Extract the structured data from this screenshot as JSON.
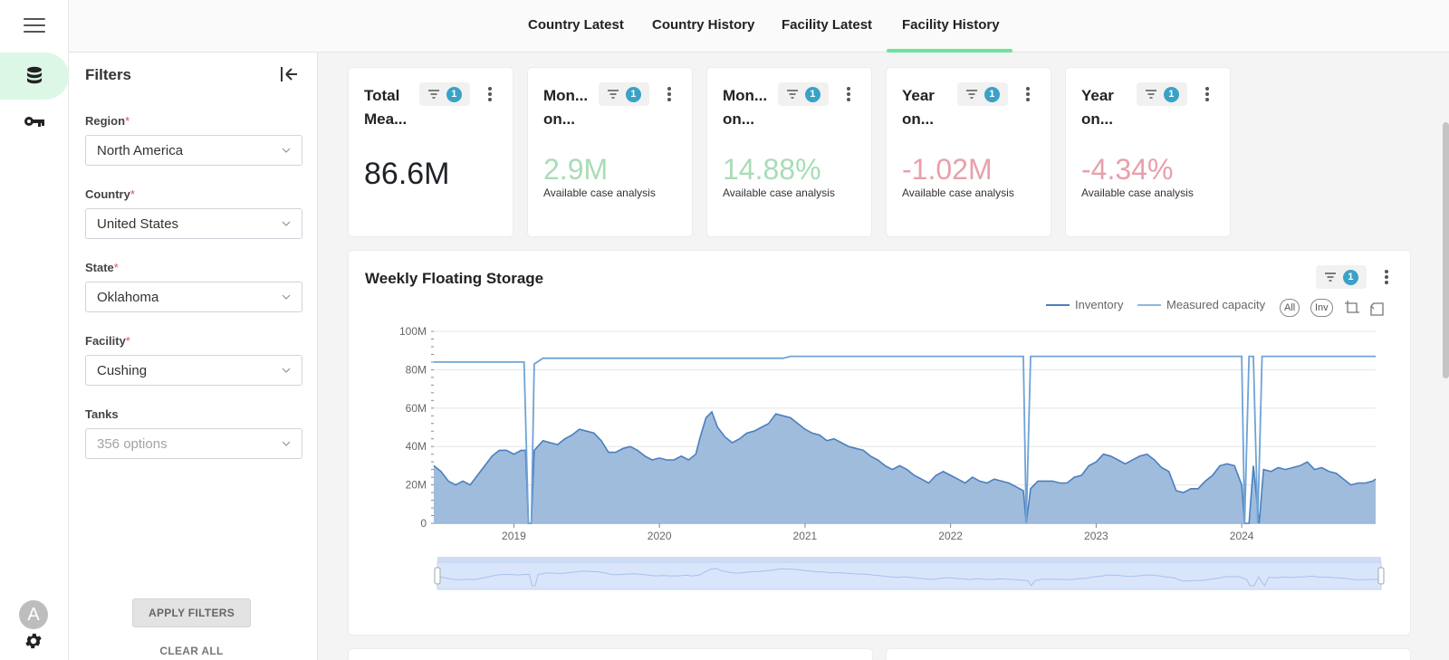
{
  "tabs": [
    "Country Latest",
    "Country History",
    "Facility Latest",
    "Facility History"
  ],
  "active_tab": "Facility History",
  "rail": {
    "avatar_letter": "A"
  },
  "filters": {
    "title": "Filters",
    "region": {
      "label": "Region",
      "value": "North America"
    },
    "country": {
      "label": "Country",
      "value": "United States"
    },
    "state": {
      "label": "State",
      "value": "Oklahoma"
    },
    "facility": {
      "label": "Facility",
      "value": "Cushing"
    },
    "tanks": {
      "label": "Tanks",
      "placeholder": "356 options"
    },
    "required_mark": "*",
    "apply_label": "APPLY FILTERS",
    "clear_label": "CLEAR ALL"
  },
  "kpis": [
    {
      "title": "Total Mea...",
      "filter_count": "1",
      "value": "86.6M",
      "sub": "",
      "tone": "neutral"
    },
    {
      "title": "Mon... on...",
      "filter_count": "1",
      "value": "2.9M",
      "sub": "Available case analysis",
      "tone": "pos"
    },
    {
      "title": "Mon... on...",
      "filter_count": "1",
      "value": "14.88%",
      "sub": "Available case analysis",
      "tone": "pos"
    },
    {
      "title": "Year on...",
      "filter_count": "1",
      "value": "-1.02M",
      "sub": "Available case analysis",
      "tone": "neg"
    },
    {
      "title": "Year on...",
      "filter_count": "1",
      "value": "-4.34%",
      "sub": "Available case analysis",
      "tone": "neg"
    }
  ],
  "chart_card": {
    "title": "Weekly Floating Storage",
    "filter_count": "1",
    "legend": [
      "Inventory",
      "Measured capacity"
    ],
    "buttons": [
      "All",
      "Inv"
    ]
  },
  "colors": {
    "inventory": "#4a7fbf",
    "inventory_fill": "#9bb8da",
    "capacity": "#6fa3d6",
    "accent": "#6ee39a",
    "badge": "#3aa1c7"
  },
  "chart_data": {
    "type": "area",
    "title": "Weekly Floating Storage",
    "xlabel": "",
    "ylabel": "",
    "x_ticks": [
      "2019",
      "2020",
      "2021",
      "2022",
      "2023",
      "2024"
    ],
    "y_ticks": [
      "0",
      "20M",
      "40M",
      "60M",
      "80M",
      "100M"
    ],
    "ylim": [
      0,
      100
    ],
    "xlim": [
      2018.45,
      2024.92
    ],
    "grid": true,
    "legend_position": "top-right",
    "series": [
      {
        "name": "Inventory",
        "kind": "area",
        "points": [
          [
            2018.45,
            30
          ],
          [
            2018.5,
            27
          ],
          [
            2018.55,
            22
          ],
          [
            2018.6,
            20
          ],
          [
            2018.65,
            22
          ],
          [
            2018.7,
            20
          ],
          [
            2018.75,
            25
          ],
          [
            2018.8,
            30
          ],
          [
            2018.85,
            35
          ],
          [
            2018.9,
            38
          ],
          [
            2018.95,
            38
          ],
          [
            2019.0,
            36
          ],
          [
            2019.05,
            38
          ],
          [
            2019.08,
            38
          ],
          [
            2019.1,
            0
          ],
          [
            2019.12,
            0
          ],
          [
            2019.14,
            38
          ],
          [
            2019.2,
            43
          ],
          [
            2019.25,
            42
          ],
          [
            2019.3,
            41
          ],
          [
            2019.35,
            44
          ],
          [
            2019.4,
            46
          ],
          [
            2019.45,
            49
          ],
          [
            2019.5,
            48
          ],
          [
            2019.55,
            47
          ],
          [
            2019.6,
            43
          ],
          [
            2019.65,
            37
          ],
          [
            2019.7,
            37
          ],
          [
            2019.75,
            39
          ],
          [
            2019.8,
            40
          ],
          [
            2019.85,
            38
          ],
          [
            2019.9,
            35
          ],
          [
            2019.95,
            33
          ],
          [
            2020.0,
            34
          ],
          [
            2020.05,
            33
          ],
          [
            2020.1,
            33
          ],
          [
            2020.15,
            35
          ],
          [
            2020.2,
            33
          ],
          [
            2020.25,
            36
          ],
          [
            2020.28,
            45
          ],
          [
            2020.32,
            55
          ],
          [
            2020.36,
            58
          ],
          [
            2020.4,
            50
          ],
          [
            2020.45,
            45
          ],
          [
            2020.5,
            42
          ],
          [
            2020.55,
            44
          ],
          [
            2020.6,
            47
          ],
          [
            2020.65,
            48
          ],
          [
            2020.7,
            50
          ],
          [
            2020.75,
            52
          ],
          [
            2020.8,
            57
          ],
          [
            2020.85,
            56
          ],
          [
            2020.9,
            55
          ],
          [
            2020.95,
            52
          ],
          [
            2021.0,
            49
          ],
          [
            2021.05,
            47
          ],
          [
            2021.1,
            46
          ],
          [
            2021.15,
            43
          ],
          [
            2021.2,
            44
          ],
          [
            2021.25,
            42
          ],
          [
            2021.3,
            40
          ],
          [
            2021.35,
            39
          ],
          [
            2021.4,
            38
          ],
          [
            2021.45,
            35
          ],
          [
            2021.5,
            33
          ],
          [
            2021.55,
            30
          ],
          [
            2021.6,
            28
          ],
          [
            2021.65,
            30
          ],
          [
            2021.7,
            28
          ],
          [
            2021.75,
            25
          ],
          [
            2021.8,
            23
          ],
          [
            2021.85,
            21
          ],
          [
            2021.9,
            25
          ],
          [
            2021.95,
            27
          ],
          [
            2022.0,
            25
          ],
          [
            2022.05,
            23
          ],
          [
            2022.1,
            21
          ],
          [
            2022.15,
            24
          ],
          [
            2022.2,
            22
          ],
          [
            2022.25,
            21
          ],
          [
            2022.3,
            23
          ],
          [
            2022.35,
            22
          ],
          [
            2022.4,
            21
          ],
          [
            2022.45,
            19
          ],
          [
            2022.5,
            17
          ],
          [
            2022.52,
            0
          ],
          [
            2022.55,
            18
          ],
          [
            2022.6,
            22
          ],
          [
            2022.65,
            22
          ],
          [
            2022.7,
            22
          ],
          [
            2022.75,
            21
          ],
          [
            2022.8,
            21
          ],
          [
            2022.85,
            24
          ],
          [
            2022.9,
            25
          ],
          [
            2022.95,
            30
          ],
          [
            2023.0,
            32
          ],
          [
            2023.05,
            36
          ],
          [
            2023.1,
            35
          ],
          [
            2023.15,
            33
          ],
          [
            2023.2,
            31
          ],
          [
            2023.25,
            33
          ],
          [
            2023.3,
            35
          ],
          [
            2023.35,
            36
          ],
          [
            2023.4,
            33
          ],
          [
            2023.45,
            29
          ],
          [
            2023.5,
            27
          ],
          [
            2023.55,
            17
          ],
          [
            2023.6,
            16
          ],
          [
            2023.65,
            18
          ],
          [
            2023.7,
            18
          ],
          [
            2023.75,
            22
          ],
          [
            2023.8,
            25
          ],
          [
            2023.85,
            30
          ],
          [
            2023.9,
            31
          ],
          [
            2023.95,
            30
          ],
          [
            2024.0,
            20
          ],
          [
            2024.02,
            0
          ],
          [
            2024.05,
            0
          ],
          [
            2024.08,
            30
          ],
          [
            2024.12,
            0
          ],
          [
            2024.15,
            28
          ],
          [
            2024.2,
            27
          ],
          [
            2024.25,
            29
          ],
          [
            2024.3,
            28
          ],
          [
            2024.35,
            29
          ],
          [
            2024.4,
            30
          ],
          [
            2024.45,
            32
          ],
          [
            2024.5,
            28
          ],
          [
            2024.55,
            29
          ],
          [
            2024.6,
            27
          ],
          [
            2024.65,
            26
          ],
          [
            2024.7,
            23
          ],
          [
            2024.75,
            20
          ],
          [
            2024.8,
            21
          ],
          [
            2024.85,
            21
          ],
          [
            2024.9,
            22
          ],
          [
            2024.92,
            23
          ]
        ]
      },
      {
        "name": "Measured capacity",
        "kind": "line",
        "points": [
          [
            2018.45,
            84
          ],
          [
            2019.07,
            84
          ],
          [
            2019.1,
            0
          ],
          [
            2019.12,
            0
          ],
          [
            2019.14,
            83
          ],
          [
            2019.2,
            86
          ],
          [
            2020.85,
            86
          ],
          [
            2020.9,
            87
          ],
          [
            2022.5,
            87
          ],
          [
            2022.52,
            0
          ],
          [
            2022.55,
            87
          ],
          [
            2024.0,
            87
          ],
          [
            2024.02,
            0
          ],
          [
            2024.05,
            87
          ],
          [
            2024.08,
            87
          ],
          [
            2024.11,
            0
          ],
          [
            2024.14,
            87
          ],
          [
            2024.92,
            87
          ]
        ]
      }
    ]
  }
}
